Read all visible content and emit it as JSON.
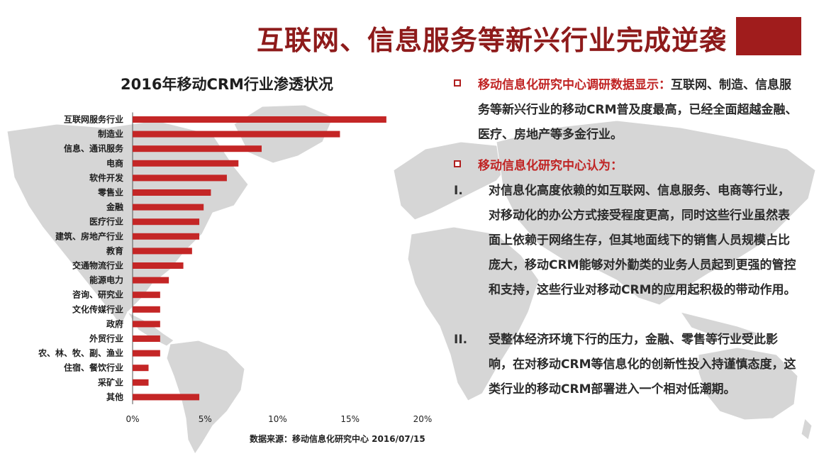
{
  "header": {
    "title": "互联网、信息服务等新兴行业完成逆袭",
    "accent_color": "#a01c1c"
  },
  "chart_data": {
    "type": "bar",
    "orientation": "horizontal",
    "title": "2016年移动CRM行业渗透状况",
    "categories": [
      "互联网服务行业",
      "制造业",
      "信息、通讯服务",
      "电商",
      "软件开发",
      "零售业",
      "金融",
      "医疗行业",
      "建筑、房地产行业",
      "教育",
      "交通物流行业",
      "能源电力",
      "咨询、研究业",
      "文化传媒行业",
      "政府",
      "外贸行业",
      "农、林、牧、副、渔业",
      "住宿、餐饮行业",
      "采矿业",
      "其他"
    ],
    "values": [
      17.5,
      14.3,
      8.9,
      7.3,
      6.5,
      5.4,
      4.9,
      4.6,
      4.6,
      4.1,
      3.5,
      2.5,
      1.9,
      1.9,
      1.9,
      1.9,
      1.9,
      1.1,
      1.1,
      4.6
    ],
    "xlim": [
      0,
      20
    ],
    "x_ticks": [
      "0%",
      "5%",
      "10%",
      "15%",
      "20%"
    ],
    "bar_color": "#c42626",
    "grid": false,
    "source": "数据来源：移动信息化研究中心 2016/07/15"
  },
  "findings": {
    "item1_label": "移动信息化研究中心调研数据显示：",
    "item1_text": "互联网、制造、信息服务等新兴行业的移动CRM普及度最高，已经全面超越金融、医疗、房地产等多金行业。",
    "item2_label": "移动信息化研究中心认为：",
    "points": [
      {
        "mark": "I.",
        "text": "对信息化高度依赖的如互联网、信息服务、电商等行业，对移动化的办公方式接受程度更高，同时这些行业虽然表面上依赖于网络生存，但其地面线下的销售人员规模占比庞大，移动CRM能够对外勤类的业务人员起到更强的管控和支持，这些行业对移动CRM的应用起积极的带动作用。"
      },
      {
        "mark": "II.",
        "text": "受整体经济环境下行的压力，金融、零售等行业受此影响，在对移动CRM等信息化的创新性投入持谨慎态度，这类行业的移动CRM部署进入一个相对低潮期。"
      }
    ],
    "highlight_color": "#c02424"
  }
}
